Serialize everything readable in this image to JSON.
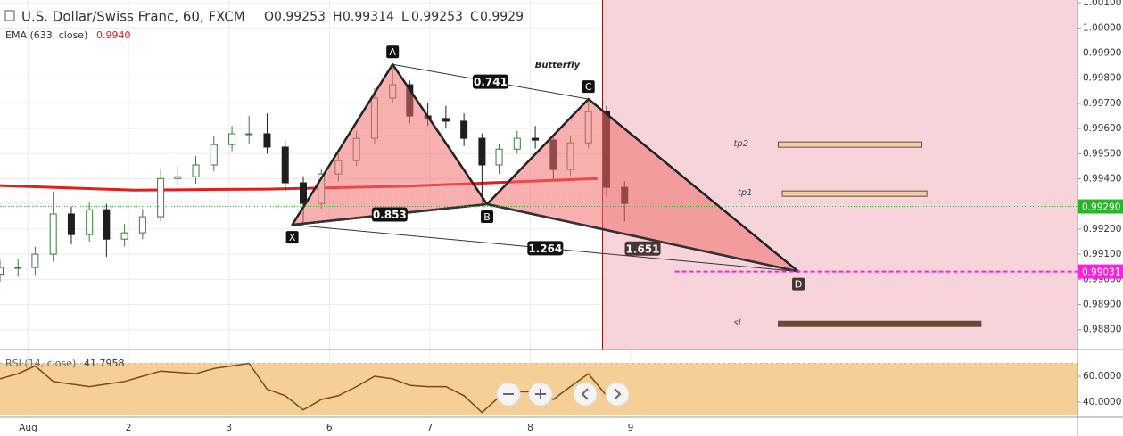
{
  "chart_data": {
    "type": "candlestick",
    "title": "U.S. Dollar/Swiss Franc, 60, FXCM",
    "ohlc_header": [
      {
        "label": "O",
        "value": 0.99253
      },
      {
        "label": "H",
        "value": 0.99314
      },
      {
        "label": "L",
        "value": 0.99253
      },
      {
        "label": "C",
        "value": 0.9929
      }
    ],
    "ema": {
      "label": "EMA (633, close)",
      "value": {
        "value": 0.994,
        "label": "0.9940"
      },
      "color": "#e51c1c",
      "x": [
        -0.28,
        1.05,
        2.38,
        3.72,
        5.05,
        5.67
      ],
      "values": [
        0.99373,
        0.99355,
        0.99359,
        0.9937,
        0.99391,
        0.99401
      ]
    },
    "candles": {
      "up_color": "#3c7a3e",
      "down_color": "#1e1e1e",
      "x": [
        -0.28,
        -0.1,
        0.07,
        0.25,
        0.43,
        0.61,
        0.78,
        0.96,
        1.14,
        1.32,
        1.49,
        1.67,
        1.85,
        2.03,
        2.2,
        2.38,
        2.56,
        2.74,
        2.92,
        3.09,
        3.27,
        3.45,
        3.63,
        3.8,
        3.98,
        4.16,
        4.34,
        4.52,
        4.69,
        4.87,
        5.05,
        5.23,
        5.4,
        5.58,
        5.76,
        5.94
      ],
      "open": [
        0.9902,
        0.99047,
        0.99047,
        0.991,
        0.9926,
        0.99178,
        0.99277,
        0.9916,
        0.99185,
        0.99249,
        0.99401,
        0.99408,
        0.99455,
        0.99536,
        0.99579,
        0.99579,
        0.99526,
        0.99384,
        0.99302,
        0.99419,
        0.99472,
        0.99561,
        0.99721,
        0.99774,
        0.9965,
        0.9964,
        0.99629,
        0.99561,
        0.99455,
        0.99518,
        0.99561,
        0.99554,
        0.99437,
        0.99543,
        0.99667,
        0.99366
      ],
      "high": [
        0.99077,
        0.9908,
        0.9913,
        0.9935,
        0.9929,
        0.9931,
        0.993,
        0.9922,
        0.9928,
        0.9944,
        0.9945,
        0.9949,
        0.9957,
        0.9961,
        0.9965,
        0.9966,
        0.9955,
        0.9941,
        0.9944,
        0.995,
        0.9959,
        0.9976,
        0.99855,
        0.9979,
        0.997,
        0.9969,
        0.9966,
        0.9958,
        0.9954,
        0.9959,
        0.9961,
        0.9957,
        0.9957,
        0.99717,
        0.9969,
        0.9939
      ],
      "low": [
        0.9899,
        0.9901,
        0.99017,
        0.9907,
        0.9914,
        0.9915,
        0.9909,
        0.9913,
        0.9916,
        0.9923,
        0.9937,
        0.9938,
        0.9943,
        0.9951,
        0.9954,
        0.995,
        0.9935,
        0.99217,
        0.9928,
        0.9939,
        0.9945,
        0.9954,
        0.997,
        0.9962,
        0.9961,
        0.996,
        0.9953,
        0.99299,
        0.9942,
        0.995,
        0.9952,
        0.994,
        0.9941,
        0.9952,
        0.9933,
        0.9923
      ],
      "close": [
        0.99047,
        0.99047,
        0.991,
        0.9926,
        0.99178,
        0.99277,
        0.9916,
        0.99185,
        0.99249,
        0.99401,
        0.99408,
        0.99455,
        0.99536,
        0.99579,
        0.99579,
        0.99526,
        0.99384,
        0.99302,
        0.99419,
        0.99472,
        0.99561,
        0.99721,
        0.99774,
        0.9965,
        0.9964,
        0.99629,
        0.99561,
        0.99455,
        0.99518,
        0.99561,
        0.99554,
        0.99437,
        0.99543,
        0.99667,
        0.99366,
        0.99302
      ]
    },
    "pattern": {
      "name": "Butterfly",
      "points": [
        {
          "label": "X",
          "x": 2.63,
          "price": 0.99217
        },
        {
          "label": "A",
          "x": 3.63,
          "price": 0.99855
        },
        {
          "label": "B",
          "x": 4.57,
          "price": 0.99299
        },
        {
          "label": "C",
          "x": 5.58,
          "price": 0.99717
        },
        {
          "label": "D",
          "x": 7.67,
          "price": 0.99031
        }
      ],
      "ratios": [
        0.741,
        0.853,
        1.264,
        1.651
      ]
    },
    "levels": [
      {
        "name": "tp2",
        "price": 0.99536,
        "x": [
          7.47,
          8.9
        ]
      },
      {
        "name": "tp1",
        "price": 0.99341,
        "x": [
          7.51,
          8.95
        ]
      },
      {
        "name": "sl",
        "price": 0.98823,
        "x": [
          7.47,
          9.49
        ]
      }
    ],
    "shade_start": 5.72,
    "current_price": {
      "value": 0.9929,
      "label": "0.99290",
      "color": "#2bb32b"
    },
    "target_price": {
      "value": 0.99031,
      "x": 6.44,
      "color": "#ff1fe0"
    },
    "xlim": [
      -0.28,
      10.45
    ],
    "xticks": [
      {
        "value": 0,
        "label": "Aug"
      },
      {
        "value": 1,
        "label": "2"
      },
      {
        "value": 2,
        "label": "3"
      },
      {
        "value": 3,
        "label": "6"
      },
      {
        "value": 4,
        "label": "7"
      },
      {
        "value": 5,
        "label": "8"
      },
      {
        "value": 6,
        "label": "9"
      }
    ],
    "ylim": [
      0.98721,
      1.00111
    ],
    "yticks": [
      {
        "value": 1.001,
        "label": "1.00100"
      },
      {
        "value": 1,
        "label": "1.00000"
      },
      {
        "value": 0.999,
        "label": "0.99900"
      },
      {
        "value": 0.998,
        "label": "0.99800"
      },
      {
        "value": 0.997,
        "label": "0.99700"
      },
      {
        "value": 0.996,
        "label": "0.99600"
      },
      {
        "value": 0.995,
        "label": "0.99500"
      },
      {
        "value": 0.994,
        "label": "0.99400"
      },
      {
        "value": 0.992,
        "label": "0.99200"
      },
      {
        "value": 0.991,
        "label": "0.99100"
      },
      {
        "value": 0.99,
        "label": "0.99000"
      },
      {
        "value": 0.989,
        "label": "0.98900"
      },
      {
        "value": 0.988,
        "label": "0.98800"
      }
    ],
    "rsi": {
      "label": "RSI (14, close)",
      "value": 41.7958,
      "color": "#7a4a12",
      "ylim": [
        28.3,
        80
      ],
      "bands": [
        30,
        70
      ],
      "yticks": [
        {
          "value": 60,
          "label": "60.0000"
        },
        {
          "value": 40,
          "label": "40.0000"
        }
      ],
      "values": [
        58,
        62,
        68,
        56,
        54,
        52,
        54,
        56,
        60,
        64,
        63,
        62,
        66,
        68,
        70,
        50,
        45,
        34,
        42,
        45,
        52,
        60,
        58,
        53,
        52,
        52,
        45,
        32,
        44,
        48,
        48,
        42,
        52,
        62,
        45,
        42
      ]
    }
  }
}
